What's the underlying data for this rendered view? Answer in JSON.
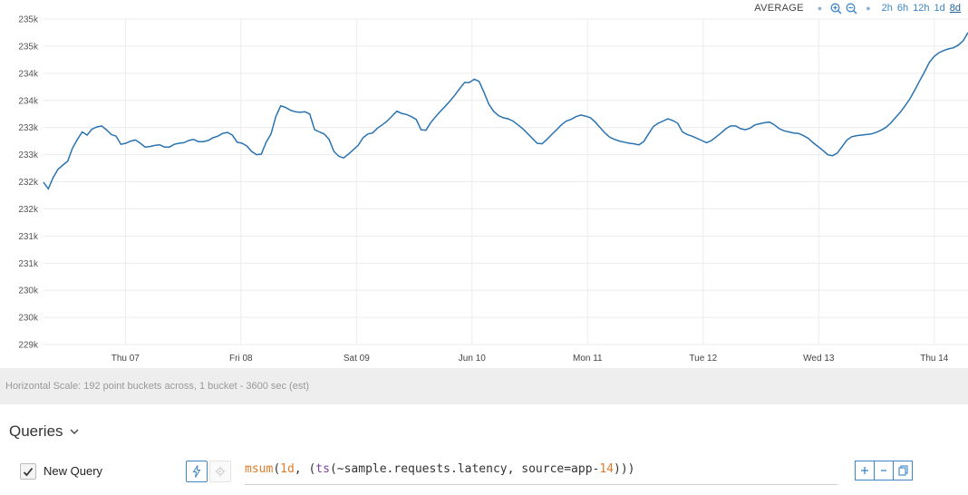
{
  "toolbar": {
    "aggregation": "AVERAGE",
    "zoom_in_icon": "zoom-in-icon",
    "zoom_out_icon": "zoom-out-icon",
    "ranges": [
      "2h",
      "6h",
      "12h",
      "1d",
      "8d"
    ],
    "active_range": "8d"
  },
  "horizontal_scale": "Horizontal Scale: 192 point buckets across, 1 bucket - 3600 sec (est)",
  "queries": {
    "heading": "Queries",
    "items": [
      {
        "name": "New Query",
        "checked": true,
        "expression": {
          "fn": "msum",
          "open": "(",
          "window": "1d",
          "sep1": ", (",
          "ts": "ts",
          "args1": "(~sample.requests.latency, source=app-",
          "source_num": "14",
          "close": ")))"
        }
      }
    ]
  },
  "colors": {
    "series": "#2a73b0",
    "accent": "#3d86c6",
    "grid": "#ececec"
  },
  "chart_data": {
    "type": "line",
    "y_tick_labels": [
      "235k",
      "235k",
      "234k",
      "234k",
      "233k",
      "233k",
      "232k",
      "232k",
      "231k",
      "231k",
      "230k",
      "230k",
      "229k"
    ],
    "ylim": [
      229000,
      235000
    ],
    "x_tick_labels": [
      "Thu 07",
      "Fri 08",
      "Sat 09",
      "Jun 10",
      "Mon 11",
      "Tue 12",
      "Wed 13",
      "Thu 14"
    ],
    "x_range_hours": [
      0,
      192
    ],
    "grid": true,
    "series": [
      {
        "values": [
          231990,
          231870,
          232080,
          232230,
          232310,
          232380,
          232620,
          232780,
          232920,
          232860,
          232970,
          233010,
          233030,
          232960,
          232870,
          232840,
          232690,
          232710,
          232750,
          232770,
          232710,
          232640,
          232650,
          232670,
          232680,
          232640,
          232640,
          232690,
          232710,
          232720,
          232760,
          232780,
          232740,
          232740,
          232760,
          232810,
          232840,
          232890,
          232910,
          232860,
          232730,
          232710,
          232660,
          232560,
          232500,
          232510,
          232730,
          232880,
          233200,
          233400,
          233370,
          233320,
          233290,
          233280,
          233290,
          233250,
          232960,
          232920,
          232880,
          232780,
          232560,
          232470,
          232440,
          232510,
          232590,
          232670,
          232810,
          232880,
          232900,
          232990,
          233050,
          233120,
          233210,
          233300,
          233260,
          233240,
          233200,
          233150,
          232960,
          232950,
          233090,
          233200,
          233300,
          233390,
          233490,
          233600,
          233720,
          233830,
          233830,
          233890,
          233850,
          233650,
          233430,
          233300,
          233220,
          233180,
          233160,
          233120,
          233050,
          232980,
          232890,
          232800,
          232710,
          232700,
          232780,
          232870,
          232960,
          233050,
          233120,
          233150,
          233200,
          233230,
          233210,
          233180,
          233100,
          233000,
          232900,
          232820,
          232780,
          232750,
          232730,
          232710,
          232700,
          232680,
          232740,
          232880,
          233020,
          233080,
          233120,
          233160,
          233130,
          233080,
          232920,
          232870,
          232840,
          232800,
          232760,
          232720,
          232760,
          232830,
          232900,
          232980,
          233030,
          233030,
          232980,
          232960,
          232990,
          233050,
          233070,
          233090,
          233100,
          233050,
          232980,
          232940,
          232920,
          232900,
          232890,
          232850,
          232800,
          232720,
          232650,
          232580,
          232500,
          232480,
          232530,
          232650,
          232770,
          232830,
          232850,
          232860,
          232870,
          232880,
          232910,
          232950,
          233000,
          233080,
          233180,
          233280,
          233400,
          233530,
          233690,
          233860,
          234020,
          234200,
          234310,
          234380,
          234420,
          234450,
          234470,
          234520,
          234600,
          234750
        ]
      }
    ]
  }
}
